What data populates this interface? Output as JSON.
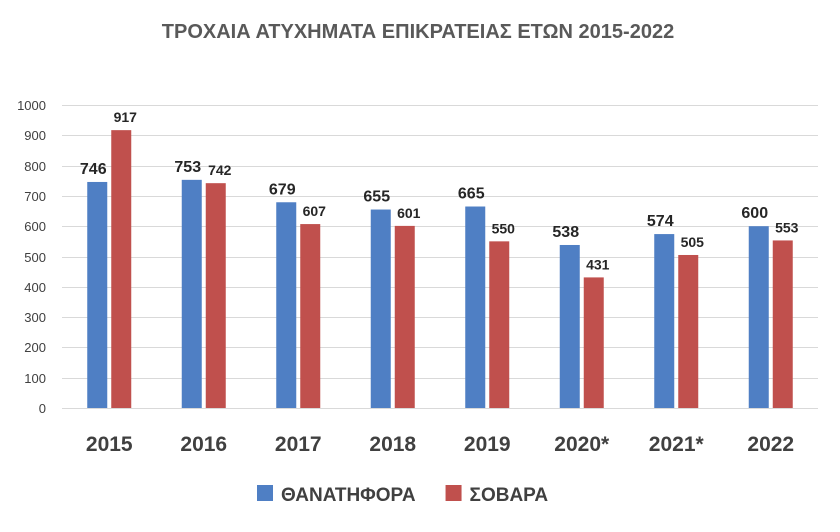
{
  "chart_data": {
    "type": "bar",
    "title": "ΤΡΟΧΑΙΑ ΑΤΥΧΗΜΑΤΑ ΕΠΙΚΡΑΤΕΙΑΣ ΕΤΩΝ 2015-2022",
    "categories": [
      "2015",
      "2016",
      "2017",
      "2018",
      "2019",
      "2020*",
      "2021*",
      "2022"
    ],
    "series": [
      {
        "name": "ΘΑΝΑΤΗΦΟΡΑ",
        "color": "#4f7fc4",
        "values": [
          746,
          753,
          679,
          655,
          665,
          538,
          574,
          600
        ]
      },
      {
        "name": "ΣΟΒΑΡΑ",
        "color": "#c0504d",
        "values": [
          917,
          742,
          607,
          601,
          550,
          431,
          505,
          553
        ]
      }
    ],
    "ylim": [
      0,
      1000
    ],
    "yticks": [
      0,
      100,
      200,
      300,
      400,
      500,
      600,
      700,
      800,
      900,
      1000
    ],
    "xlabel": "",
    "ylabel": "",
    "grid": true,
    "legend": "bottom"
  }
}
